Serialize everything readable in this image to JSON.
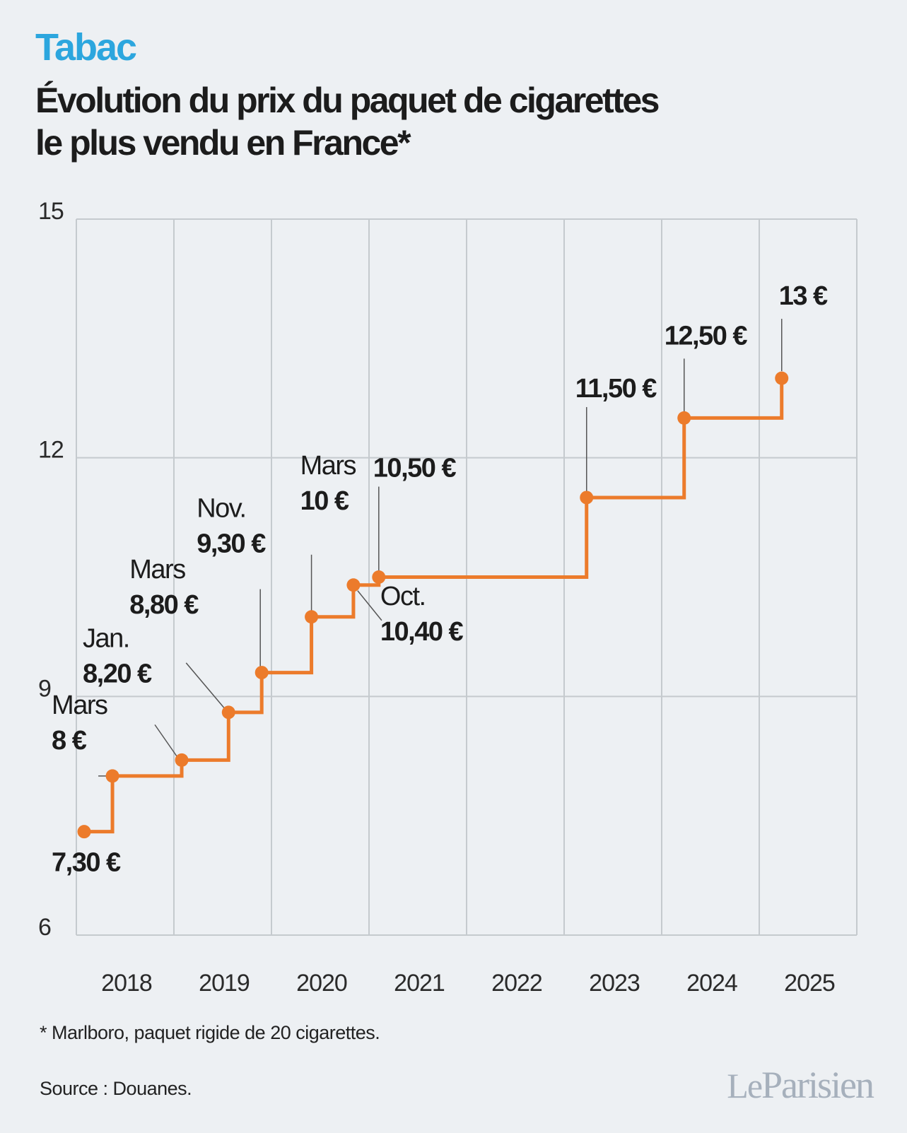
{
  "header": {
    "kicker": "Tabac",
    "title_line1": "Évolution du prix du paquet de cigarettes",
    "title_line2": "le plus vendu en France*"
  },
  "footer": {
    "footnote": "* Marlboro, paquet rigide de 20 cigarettes.",
    "source": "Source : Douanes.",
    "logo_le": "Le",
    "logo_name": "Parisien"
  },
  "colors": {
    "line": "#ec7b2b",
    "kicker": "#2ca6de",
    "grid": "#c5cace",
    "background": "#edf0f3"
  },
  "chart_data": {
    "type": "line",
    "step": true,
    "title": "Évolution du prix du paquet de cigarettes le plus vendu en France*",
    "xlabel": "",
    "ylabel": "",
    "ylim": [
      6,
      15
    ],
    "yticks": [
      15,
      12,
      9,
      6
    ],
    "xlim": [
      2017.5,
      2025.5
    ],
    "x_tick_labels": [
      "2018",
      "2019",
      "2020",
      "2021",
      "2022",
      "2023",
      "2024",
      "2025"
    ],
    "grid": true,
    "series": [
      {
        "points": [
          {
            "x": 2017.58,
            "y": 7.3,
            "month": "",
            "price": "7,30 €"
          },
          {
            "x": 2017.87,
            "y": 8.0,
            "month": "Mars",
            "price": "8 €"
          },
          {
            "x": 2018.58,
            "y": 8.2,
            "month": "Jan.",
            "price": "8,20 €"
          },
          {
            "x": 2019.06,
            "y": 8.8,
            "month": "Mars",
            "price": "8,80 €"
          },
          {
            "x": 2019.4,
            "y": 9.3,
            "month": "Nov.",
            "price": "9,30 €"
          },
          {
            "x": 2019.91,
            "y": 10.0,
            "month": "Mars",
            "price": "10 €"
          },
          {
            "x": 2020.34,
            "y": 10.4,
            "month": "Oct.",
            "price": "10,40 €"
          },
          {
            "x": 2020.6,
            "y": 10.5,
            "month": "",
            "price": "10,50 €"
          },
          {
            "x": 2022.73,
            "y": 11.5,
            "month": "",
            "price": "11,50 €"
          },
          {
            "x": 2023.73,
            "y": 12.5,
            "month": "",
            "price": "12,50 €"
          },
          {
            "x": 2024.73,
            "y": 13.0,
            "month": "",
            "price": "13 €"
          }
        ]
      }
    ]
  }
}
